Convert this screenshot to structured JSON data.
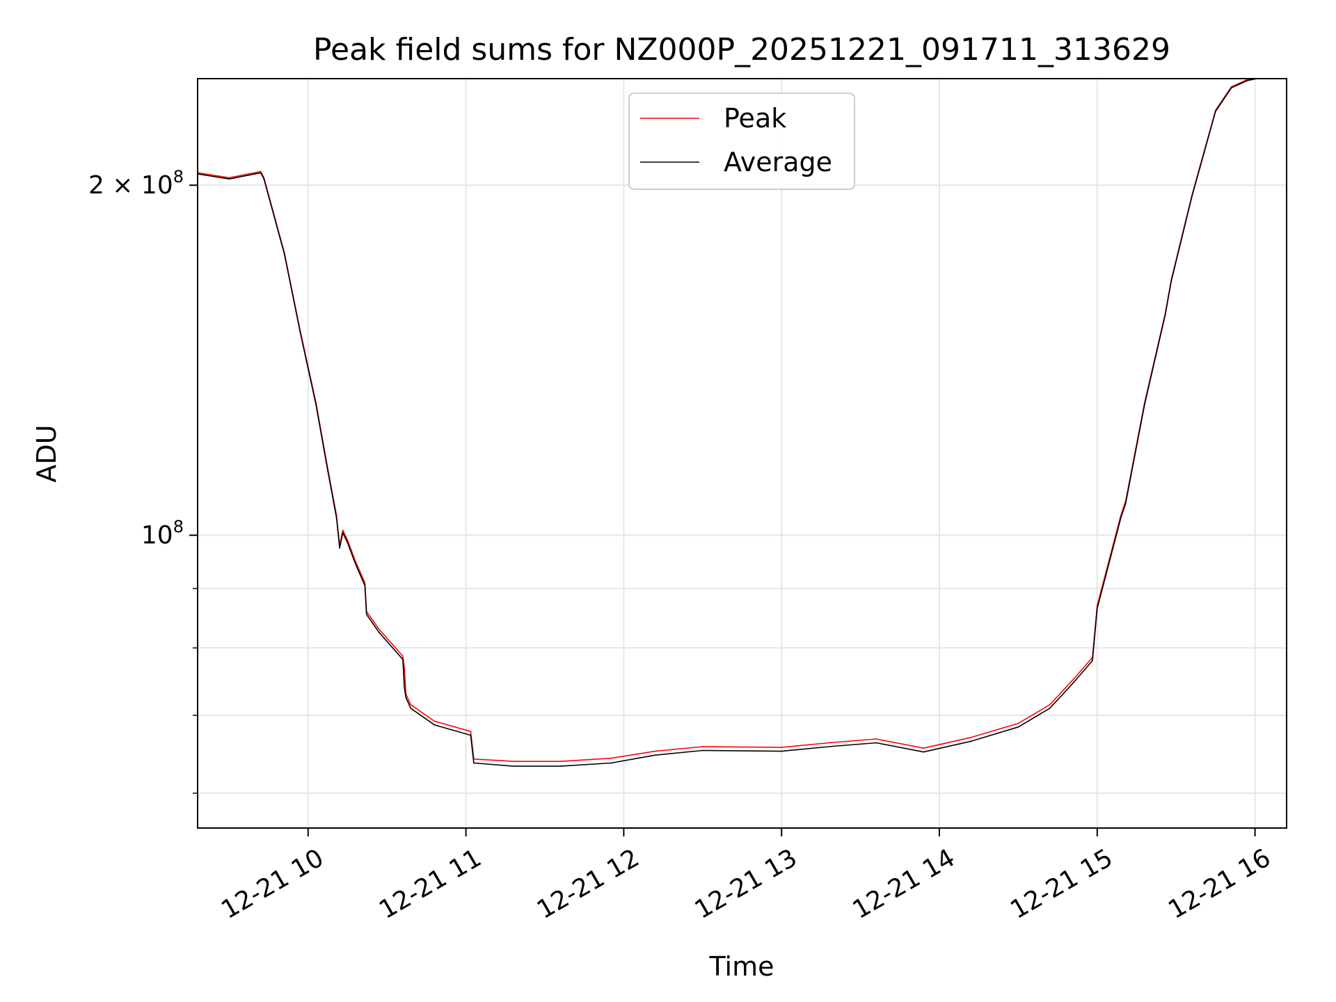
{
  "chart_data": {
    "type": "line",
    "title": "Peak field sums for NZ000P_20251221_091711_313629",
    "xlabel": "Time",
    "ylabel": "ADU",
    "y_scale": "log",
    "grid": true,
    "legend_position": "top-center",
    "xlim_hours": [
      9.3,
      16.2
    ],
    "ylim": [
      56000000,
      247000000
    ],
    "x_ticks": [
      {
        "hour": 10,
        "label": "12-21 10"
      },
      {
        "hour": 11,
        "label": "12-21 11"
      },
      {
        "hour": 12,
        "label": "12-21 12"
      },
      {
        "hour": 13,
        "label": "12-21 13"
      },
      {
        "hour": 14,
        "label": "12-21 14"
      },
      {
        "hour": 15,
        "label": "12-21 15"
      },
      {
        "hour": 16,
        "label": "12-21 16"
      }
    ],
    "y_major_ticks": [
      {
        "value": 100000000,
        "base": "10",
        "exp": "8"
      },
      {
        "value": 200000000,
        "base": "2 × 10",
        "exp": "8"
      }
    ],
    "y_minor_ticks": [
      60000000,
      70000000,
      80000000,
      90000000
    ],
    "x_hours": [
      9.3,
      9.5,
      9.7,
      9.72,
      9.85,
      9.95,
      10.05,
      10.12,
      10.18,
      10.2,
      10.22,
      10.25,
      10.3,
      10.36,
      10.37,
      10.45,
      10.6,
      10.61,
      10.62,
      10.65,
      10.8,
      11.03,
      11.05,
      11.3,
      11.6,
      11.92,
      12.2,
      12.5,
      13.0,
      13.3,
      13.6,
      13.9,
      14.2,
      14.5,
      14.7,
      14.85,
      14.97,
      15.0,
      15.1,
      15.15,
      15.18,
      15.3,
      15.43,
      15.47,
      15.6,
      15.75,
      15.85,
      15.95,
      16.0
    ],
    "series": [
      {
        "name": "Peak",
        "color": "#ff0000",
        "values": [
          205000000,
          203000000,
          205500000,
          203000000,
          175000000,
          150000000,
          130000000,
          115000000,
          104000000,
          98000000,
          101000000,
          99000000,
          95000000,
          91000000,
          86000000,
          83000000,
          78700000,
          77000000,
          73000000,
          71500000,
          69200000,
          67800000,
          64200000,
          63900000,
          63900000,
          64300000,
          65200000,
          65800000,
          65700000,
          66300000,
          66800000,
          65600000,
          67000000,
          68900000,
          71500000,
          75200000,
          78500000,
          87000000,
          98000000,
          104000000,
          107000000,
          130000000,
          155000000,
          166000000,
          196000000,
          232000000,
          243000000,
          246500000,
          247000000
        ]
      },
      {
        "name": "Average",
        "color": "#000000",
        "values": [
          204500000,
          202500000,
          205000000,
          202500000,
          174500000,
          149500000,
          129500000,
          114500000,
          103500000,
          97500000,
          100500000,
          98500000,
          94500000,
          90500000,
          85500000,
          82500000,
          78200000,
          74000000,
          72500000,
          71000000,
          68700000,
          67300000,
          63700000,
          63300000,
          63300000,
          63700000,
          64700000,
          65300000,
          65200000,
          65800000,
          66300000,
          65100000,
          66500000,
          68400000,
          71000000,
          74700000,
          78000000,
          86500000,
          97500000,
          103500000,
          106500000,
          129500000,
          154500000,
          165500000,
          195500000,
          231500000,
          242500000,
          246000000,
          246800000
        ]
      }
    ]
  }
}
